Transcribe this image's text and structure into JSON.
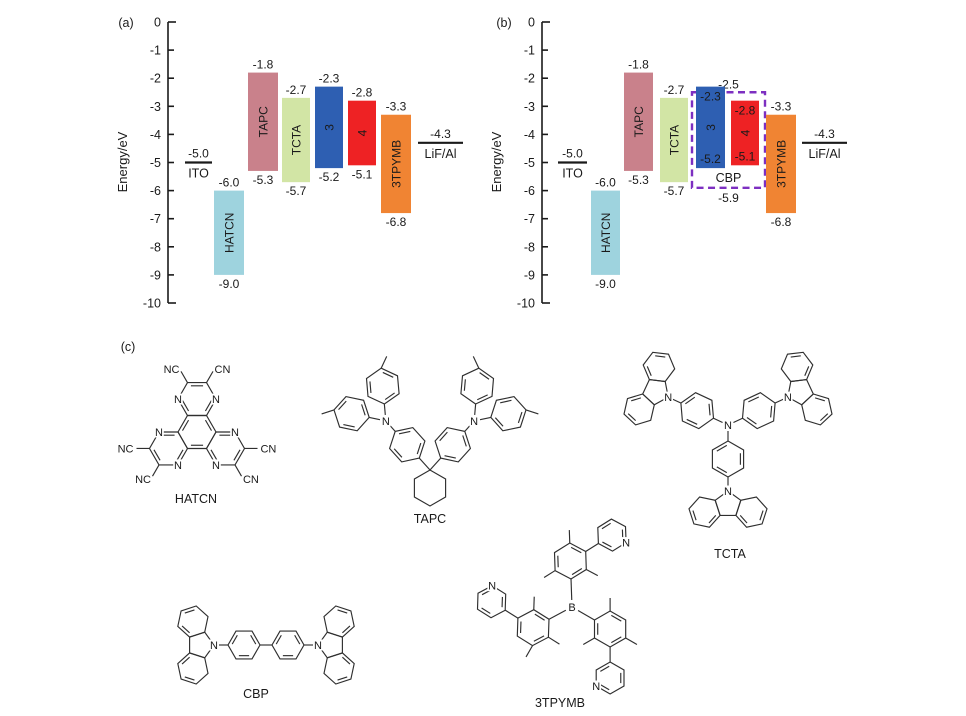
{
  "chart_data": [
    {
      "type": "bar",
      "tag": "(a)",
      "ylabel": "Energy/eV",
      "ylim": [
        -10,
        0
      ],
      "yticks": [
        0,
        -1,
        -2,
        -3,
        -4,
        -5,
        -6,
        -7,
        -8,
        -9,
        -10
      ],
      "elements": [
        {
          "kind": "electrode",
          "name": "ITO",
          "energy": -5.0,
          "label_top": "-5.0"
        },
        {
          "kind": "bar",
          "name": "HATCN",
          "top": -6.0,
          "bottom": -9.0,
          "label_top": "-6.0",
          "label_bottom": "-9.0",
          "color": "#9ed3de",
          "labels": "outside"
        },
        {
          "kind": "bar",
          "name": "TAPC",
          "top": -1.8,
          "bottom": -5.3,
          "label_top": "-1.8",
          "label_bottom": "-5.3",
          "color": "#c9818b",
          "labels": "outside"
        },
        {
          "kind": "bar",
          "name": "TCTA",
          "top": -2.7,
          "bottom": -5.7,
          "label_top": "-2.7",
          "label_bottom": "-5.7",
          "color": "#d2e5a5",
          "labels": "outside"
        },
        {
          "kind": "bar",
          "name": "3",
          "top": -2.3,
          "bottom": -5.2,
          "label_top": "-2.3",
          "label_bottom": "-5.2",
          "color": "#2e5fb2",
          "labels": "outside"
        },
        {
          "kind": "bar",
          "name": "4",
          "top": -2.8,
          "bottom": -5.1,
          "label_top": "-2.8",
          "label_bottom": "-5.1",
          "color": "#ee2224",
          "labels": "outside"
        },
        {
          "kind": "bar",
          "name": "3TPYMB",
          "top": -3.3,
          "bottom": -6.8,
          "label_top": "-3.3",
          "label_bottom": "-6.8",
          "color": "#f08433",
          "labels": "outside"
        },
        {
          "kind": "electrode",
          "name": "LiF/Al",
          "energy": -4.3,
          "label_top": "-4.3"
        }
      ]
    },
    {
      "type": "bar",
      "tag": "(b)",
      "ylabel": "Energy/eV",
      "ylim": [
        -10,
        0
      ],
      "yticks": [
        0,
        -1,
        -2,
        -3,
        -4,
        -5,
        -6,
        -7,
        -8,
        -9,
        -10
      ],
      "host_box": {
        "name": "CBP",
        "top": -2.5,
        "bottom": -5.9,
        "label_top": "-2.5",
        "label_bottom": "-5.9",
        "color": "#7d2fc1"
      },
      "elements": [
        {
          "kind": "electrode",
          "name": "ITO",
          "energy": -5.0,
          "label_top": "-5.0"
        },
        {
          "kind": "bar",
          "name": "HATCN",
          "top": -6.0,
          "bottom": -9.0,
          "label_top": "-6.0",
          "label_bottom": "-9.0",
          "color": "#9ed3de",
          "labels": "outside"
        },
        {
          "kind": "bar",
          "name": "TAPC",
          "top": -1.8,
          "bottom": -5.3,
          "label_top": "-1.8",
          "label_bottom": "-5.3",
          "color": "#c9818b",
          "labels": "outside"
        },
        {
          "kind": "bar",
          "name": "TCTA",
          "top": -2.7,
          "bottom": -5.7,
          "label_top": "-2.7",
          "label_bottom": "-5.7",
          "color": "#d2e5a5",
          "labels": "outside"
        },
        {
          "kind": "bar",
          "name": "3",
          "top": -2.3,
          "bottom": -5.2,
          "label_top": "-2.3",
          "label_bottom": "-5.2",
          "color": "#2e5fb2",
          "labels": "inside"
        },
        {
          "kind": "bar",
          "name": "4",
          "top": -2.8,
          "bottom": -5.1,
          "label_top": "-2.8",
          "label_bottom": "-5.1",
          "color": "#ee2224",
          "labels": "inside"
        },
        {
          "kind": "bar",
          "name": "3TPYMB",
          "top": -3.3,
          "bottom": -6.8,
          "label_top": "-3.3",
          "label_bottom": "-6.8",
          "color": "#f08433",
          "labels": "outside"
        },
        {
          "kind": "electrode",
          "name": "LiF/Al",
          "energy": -4.3,
          "label_top": "-4.3"
        }
      ]
    }
  ],
  "molecules": {
    "section_tag": "(c)",
    "atoms": {
      "N": "N",
      "B": "B",
      "NC": "NC",
      "CN": "CN"
    },
    "items": [
      {
        "name": "HATCN"
      },
      {
        "name": "TAPC"
      },
      {
        "name": "TCTA"
      },
      {
        "name": "CBP"
      },
      {
        "name": "3TPYMB"
      }
    ]
  }
}
